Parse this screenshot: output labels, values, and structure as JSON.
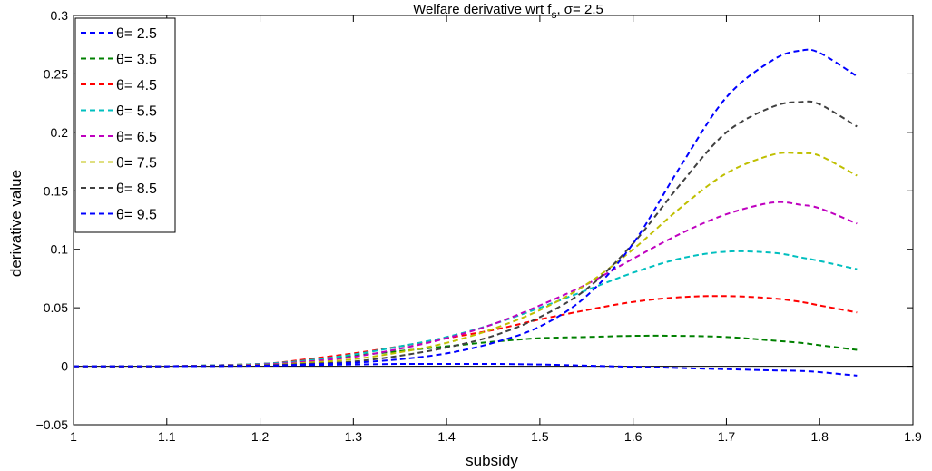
{
  "chart_data": {
    "type": "line",
    "title": "Welfare derivative wrt f",
    "title_subscript": "s",
    "title_suffix": ", σ= 2.5",
    "xlabel": "subsidy",
    "ylabel": "derivative value",
    "xlim": [
      1,
      1.9
    ],
    "ylim": [
      -0.05,
      0.3
    ],
    "xticks": [
      1,
      1.1,
      1.2,
      1.3,
      1.4,
      1.5,
      1.6,
      1.7,
      1.8,
      1.9
    ],
    "xtick_labels": [
      "1",
      "1.1",
      "1.2",
      "1.3",
      "1.4",
      "1.5",
      "1.6",
      "1.7",
      "1.8",
      "1.9"
    ],
    "yticks": [
      -0.05,
      0,
      0.05,
      0.1,
      0.15,
      0.2,
      0.25,
      0.3
    ],
    "ytick_labels": [
      "−0.05",
      "0",
      "0.05",
      "0.1",
      "0.15",
      "0.2",
      "0.25",
      "0.3"
    ],
    "legend_position": "top-left",
    "line_style": "dashed",
    "zero_line": true,
    "x": [
      1.0,
      1.1,
      1.2,
      1.25,
      1.3,
      1.35,
      1.4,
      1.45,
      1.5,
      1.55,
      1.6,
      1.65,
      1.7,
      1.75,
      1.78,
      1.8,
      1.84
    ],
    "series": [
      {
        "name": "θ= 2.5",
        "color": "#0000ff",
        "values": [
          0,
          0,
          0.0005,
          0.001,
          0.0015,
          0.002,
          0.002,
          0.002,
          0.0015,
          0.0005,
          -0.0005,
          -0.0015,
          -0.0025,
          -0.0035,
          -0.004,
          -0.005,
          -0.008
        ]
      },
      {
        "name": "θ= 3.5",
        "color": "#008000",
        "values": [
          0,
          0,
          0.002,
          0.005,
          0.009,
          0.013,
          0.017,
          0.021,
          0.024,
          0.025,
          0.026,
          0.026,
          0.025,
          0.022,
          0.02,
          0.018,
          0.014
        ]
      },
      {
        "name": "θ= 4.5",
        "color": "#ff0000",
        "values": [
          0,
          0,
          0.002,
          0.006,
          0.011,
          0.017,
          0.024,
          0.031,
          0.04,
          0.048,
          0.055,
          0.059,
          0.06,
          0.058,
          0.055,
          0.052,
          0.046
        ]
      },
      {
        "name": "θ= 5.5",
        "color": "#00bfbf",
        "values": [
          0,
          0,
          0.002,
          0.005,
          0.01,
          0.017,
          0.025,
          0.036,
          0.05,
          0.065,
          0.08,
          0.092,
          0.098,
          0.097,
          0.093,
          0.09,
          0.083
        ]
      },
      {
        "name": "θ= 6.5",
        "color": "#bf00bf",
        "values": [
          0,
          0,
          0.0015,
          0.004,
          0.008,
          0.015,
          0.024,
          0.036,
          0.052,
          0.07,
          0.092,
          0.113,
          0.13,
          0.14,
          0.138,
          0.135,
          0.122
        ]
      },
      {
        "name": "θ= 7.5",
        "color": "#bfbf00",
        "values": [
          0,
          0,
          0.001,
          0.003,
          0.006,
          0.012,
          0.02,
          0.032,
          0.048,
          0.07,
          0.1,
          0.135,
          0.165,
          0.181,
          0.182,
          0.18,
          0.163
        ]
      },
      {
        "name": "θ= 8.5",
        "color": "#404040",
        "values": [
          0,
          0,
          0.0008,
          0.002,
          0.004,
          0.009,
          0.016,
          0.026,
          0.042,
          0.066,
          0.105,
          0.155,
          0.2,
          0.222,
          0.226,
          0.224,
          0.205
        ]
      },
      {
        "name": "θ= 9.5",
        "color": "#0000ff",
        "values": [
          0,
          0,
          0.0005,
          0.0015,
          0.003,
          0.006,
          0.011,
          0.02,
          0.034,
          0.06,
          0.105,
          0.17,
          0.23,
          0.262,
          0.27,
          0.268,
          0.248
        ]
      }
    ]
  }
}
